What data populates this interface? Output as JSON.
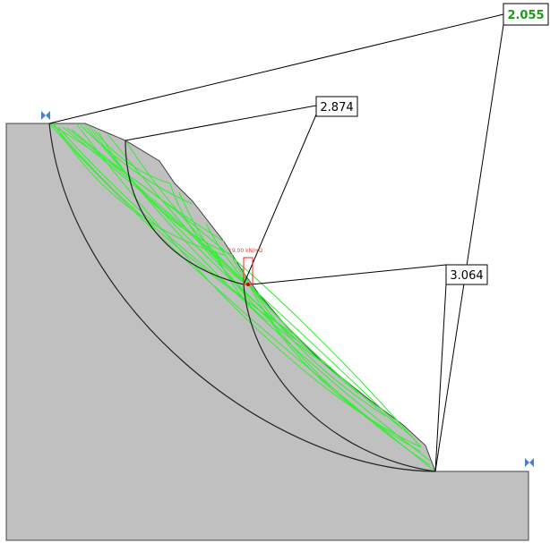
{
  "slope_analysis": {
    "factors_of_safety": [
      {
        "value": "2.055",
        "is_minimum": true
      },
      {
        "value": "2.874",
        "is_minimum": false
      },
      {
        "value": "3.064",
        "is_minimum": false
      }
    ],
    "distributed_load": "19.00 kN/m2",
    "colors": {
      "ground": "#c0c0c0",
      "trial_surfaces": "#33ee33",
      "critical_surfaces": "#000000",
      "min_fs_text": "#1a9a1a",
      "load": "#ff2020",
      "limit_markers": "#4a7fd0"
    }
  }
}
